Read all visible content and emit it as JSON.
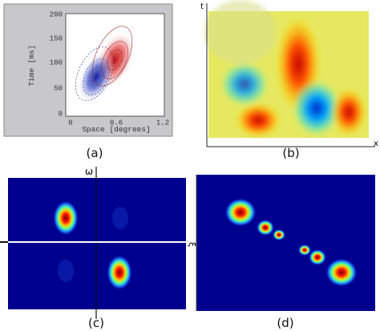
{
  "panels": [
    {
      "label": "(a)",
      "y_axis_label": "Time [ms]",
      "x_axis_label": "Space [degrees]",
      "yticks": [
        "200",
        "150",
        "100",
        "50",
        "0"
      ],
      "xticks": [
        "0",
        "0.6",
        "1.2"
      ]
    },
    {
      "label": "(b)",
      "y_axis_label": "t",
      "x_axis_label": "x"
    },
    {
      "label": "(c)",
      "y_axis_label": "ω"
    },
    {
      "label": "(d)",
      "y_axis_label": "ξ"
    }
  ]
}
